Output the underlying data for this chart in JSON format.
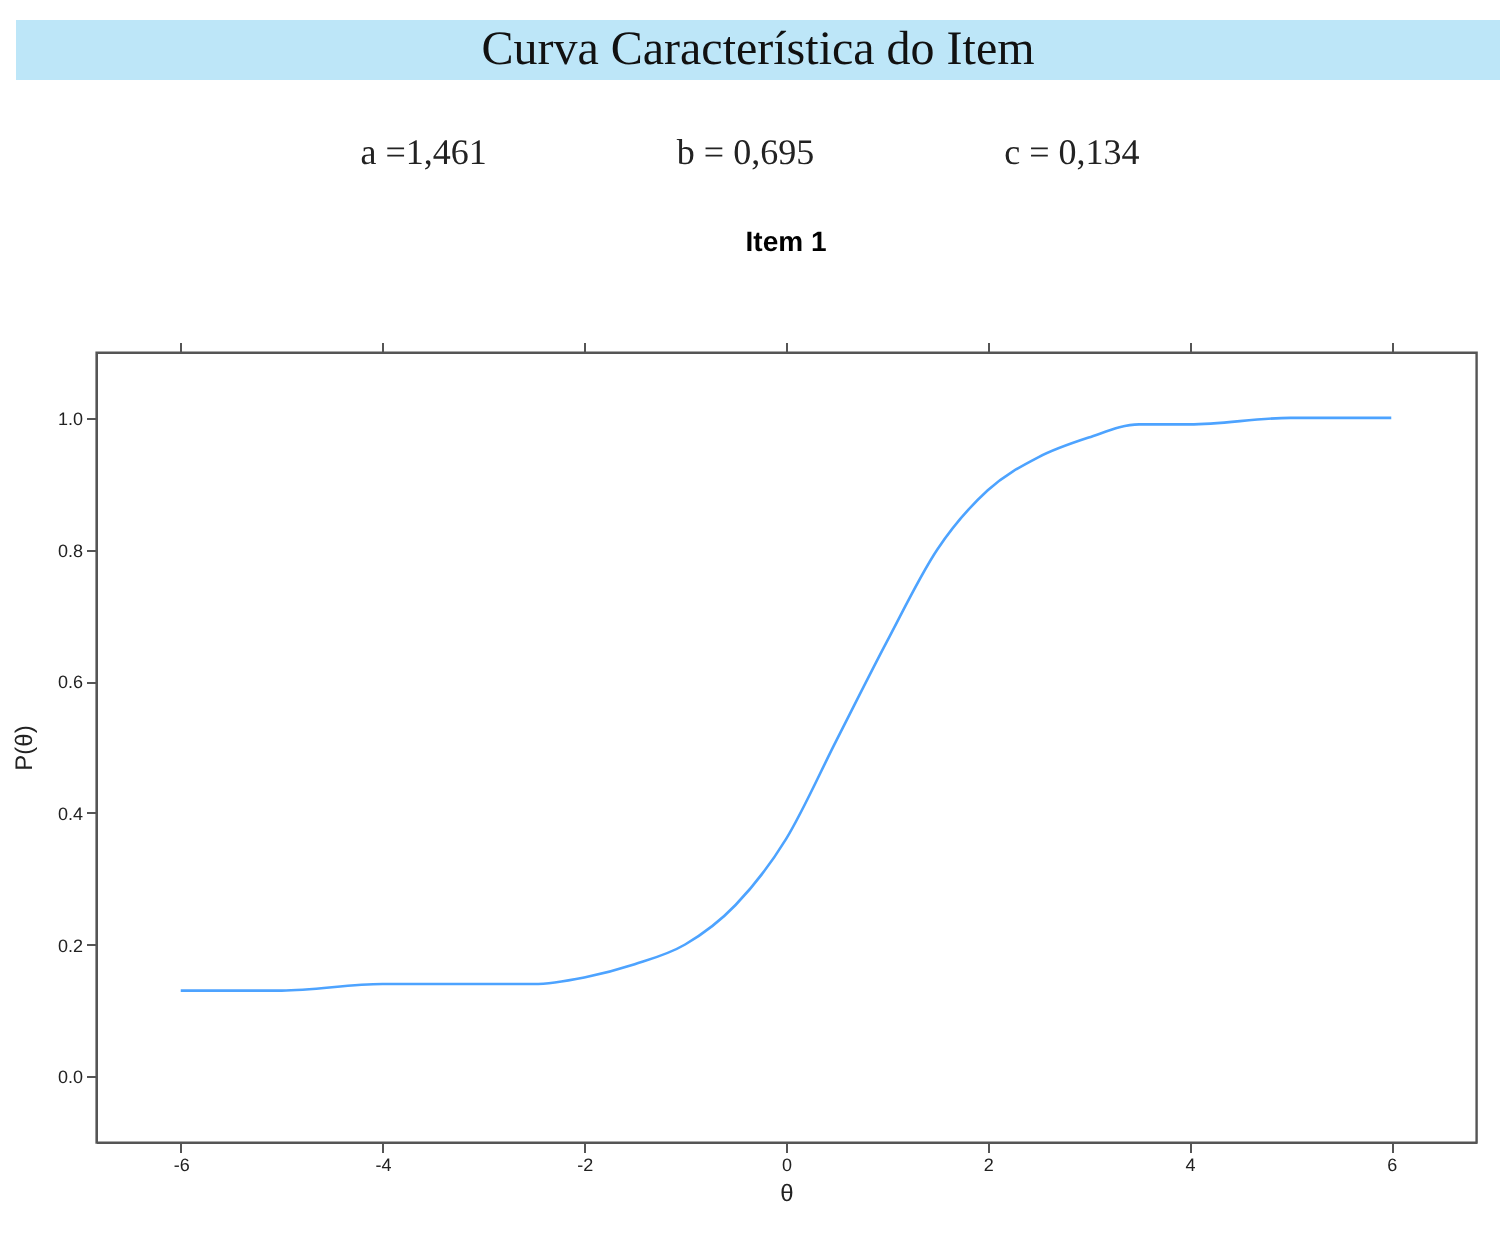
{
  "chart_data": {
    "type": "line",
    "title": "Curva Característica do Item",
    "subtitle": "Item 1",
    "annotations": [
      "a =1,461",
      "b = 0,695",
      "c = 0,134"
    ],
    "xlabel": "θ",
    "ylabel": "P(θ)",
    "x": [
      -6,
      -5,
      -4,
      -3,
      -2.5,
      -2,
      -1.5,
      -1,
      -0.5,
      0,
      0.5,
      1,
      1.5,
      2,
      2.5,
      3,
      3.5,
      4,
      5,
      6
    ],
    "series": [
      {
        "color": "#4da3ff",
        "values": [
          0.13,
          0.13,
          0.14,
          0.14,
          0.14,
          0.15,
          0.17,
          0.2,
          0.26,
          0.36,
          0.51,
          0.66,
          0.8,
          0.89,
          0.94,
          0.97,
          0.99,
          0.99,
          1.0,
          1.0
        ]
      }
    ],
    "xlim": [
      -6.84,
      6.84
    ],
    "xticks": [
      -6,
      -4,
      -2,
      0,
      2,
      4,
      6
    ],
    "ylim": [
      -0.1,
      1.1
    ],
    "yticks": [
      {
        "value": 0,
        "label": "0.0"
      },
      0.2,
      0.4,
      0.6,
      0.8,
      {
        "value": 1,
        "label": "1.0"
      }
    ],
    "grid": false,
    "marker": "none",
    "line_style": "solid"
  }
}
